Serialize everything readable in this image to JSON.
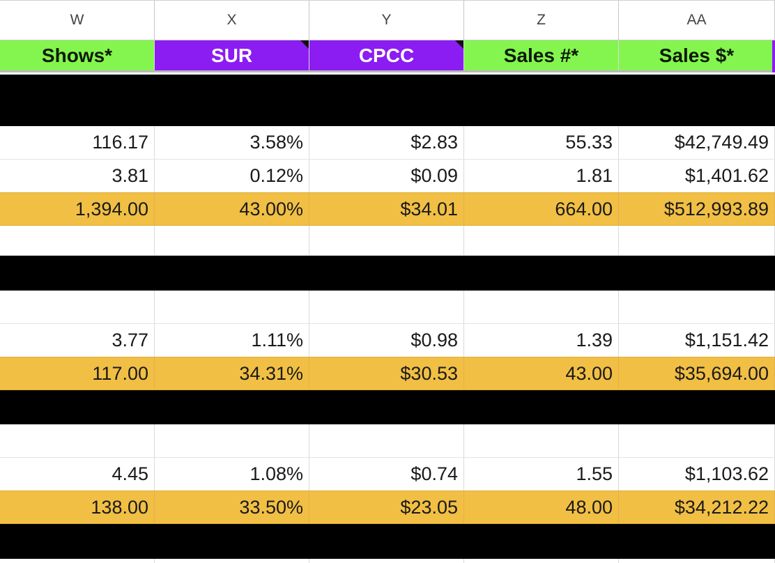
{
  "columns": [
    "W",
    "X",
    "Y",
    "Z",
    "AA"
  ],
  "headers": [
    "Shows*",
    "SUR",
    "CPCC",
    "Sales #*",
    "Sales $*"
  ],
  "rows": {
    "r1": [
      "116.17",
      "3.58%",
      "$2.83",
      "55.33",
      "$42,749.49"
    ],
    "r2": [
      "3.81",
      "0.12%",
      "$0.09",
      "1.81",
      "$1,401.62"
    ],
    "r3": [
      "1,394.00",
      "43.00%",
      "$34.01",
      "664.00",
      "$512,993.89"
    ],
    "r4": [
      "3.77",
      "1.11%",
      "$0.98",
      "1.39",
      "$1,151.42"
    ],
    "r5": [
      "117.00",
      "34.31%",
      "$30.53",
      "43.00",
      "$35,694.00"
    ],
    "r6": [
      "4.45",
      "1.08%",
      "$0.74",
      "1.55",
      "$1,103.62"
    ],
    "r7": [
      "138.00",
      "33.50%",
      "$23.05",
      "48.00",
      "$34,212.22"
    ]
  },
  "colors": {
    "green_header": "#84f54f",
    "purple_header": "#8b1cf2",
    "highlight_row": "#f1bf44",
    "separator_row": "#000000"
  }
}
